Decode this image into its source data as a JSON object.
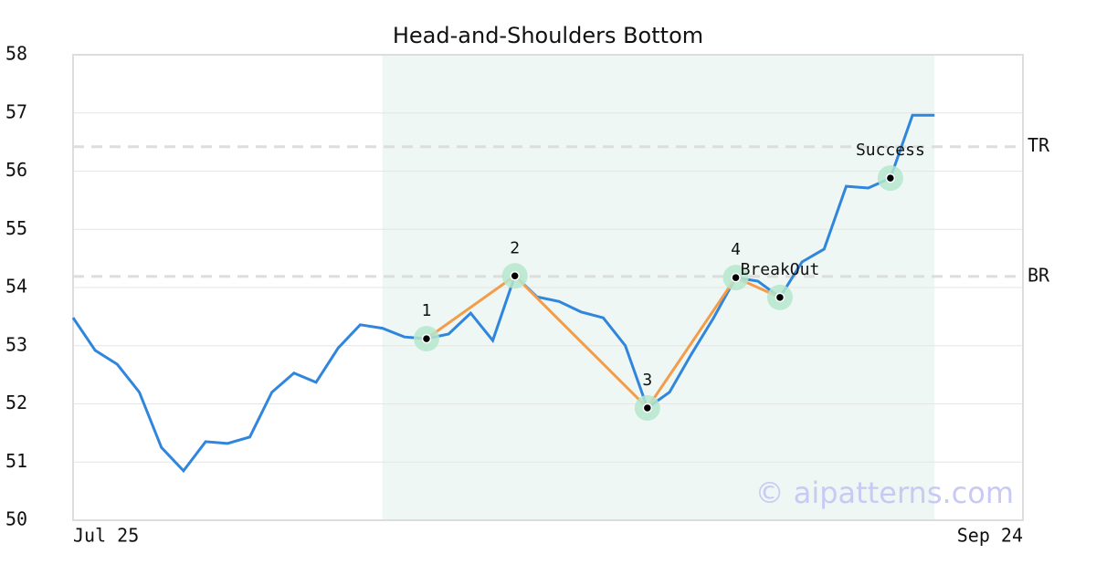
{
  "chart_data": {
    "type": "line",
    "title": "Head-and-Shoulders Bottom",
    "x": [
      0,
      1,
      2,
      3,
      4,
      5,
      6,
      7,
      8,
      9,
      10,
      11,
      12,
      13,
      14,
      15,
      16,
      17,
      18,
      19,
      20,
      21,
      22,
      23,
      24,
      25,
      26,
      27,
      28,
      29,
      30,
      31,
      32,
      33,
      34,
      35,
      36,
      37,
      38,
      39
    ],
    "xlim": [
      0,
      43
    ],
    "xticks": [
      {
        "value": 0,
        "label": "Jul 25"
      },
      {
        "value": 43,
        "label": "Sep 24"
      }
    ],
    "ylim": [
      50,
      58
    ],
    "yticks": [
      50,
      51,
      52,
      53,
      54,
      55,
      56,
      57,
      58
    ],
    "grid": true,
    "highlight": [
      14,
      39
    ],
    "series": [
      {
        "color": "#2f86dc",
        "values": [
          53.48,
          52.92,
          52.68,
          52.2,
          51.25,
          50.85,
          51.35,
          51.32,
          51.43,
          52.2,
          52.53,
          52.37,
          52.96,
          53.36,
          53.3,
          53.15,
          53.12,
          53.2,
          53.56,
          53.09,
          54.2,
          53.84,
          53.76,
          53.58,
          53.48,
          53.0,
          51.93,
          52.2,
          52.86,
          53.48,
          54.17,
          54.11,
          53.83,
          54.44,
          54.66,
          55.74,
          55.71,
          55.88,
          56.96,
          56.96
        ]
      },
      {
        "color": "#f39c4a",
        "x": [
          16,
          20,
          26,
          30,
          32
        ],
        "values": [
          53.12,
          54.2,
          51.93,
          54.17,
          53.83
        ],
        "labels": [
          "1",
          "2",
          "3",
          "4",
          "BreakOut"
        ]
      }
    ],
    "annotations": [
      {
        "x": 37,
        "y": 55.88,
        "label": "Success"
      }
    ],
    "reference_lines": [
      {
        "label": "TR",
        "value": 56.42
      },
      {
        "label": "BR",
        "value": 54.19
      }
    ],
    "watermark": "© aipatterns.com"
  }
}
